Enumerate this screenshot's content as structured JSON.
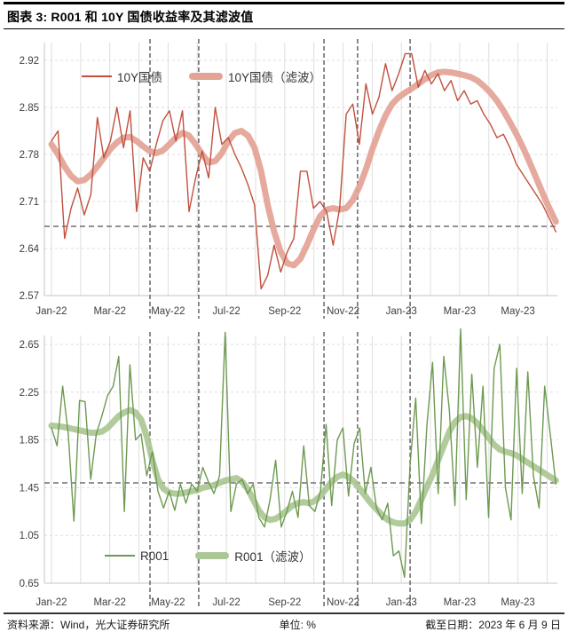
{
  "title": "图表 3: R001 和 10Y 国债收益率及其滤波值",
  "footer": {
    "source": "资料来源：Wind，光大证券研究所",
    "unit": "单位: %",
    "as_of": "截至日期：2023 年 6 月 9 日"
  },
  "colors": {
    "thin_red": "#c1503e",
    "thick_red": "#e3a395",
    "thin_green": "#6d9a50",
    "thick_green": "#abc795",
    "grid": "#dedede",
    "axis": "#c4c4c4",
    "event_line": "#6f6f6f",
    "ref_line": "#6f6f6f",
    "tick_text": "#3f3f3f"
  },
  "x_axis": {
    "labels": [
      "Jan-22",
      "Mar-22",
      "May-22",
      "Jul-22",
      "Sep-22",
      "Nov-22",
      "Jan-23",
      "Mar-23",
      "May-23"
    ],
    "months_total": 17.3,
    "tick_every_months": 2
  },
  "chart_data": [
    {
      "type": "line",
      "title": "10Y 国债收益率及其滤波值",
      "ylim": [
        2.57,
        2.92
      ],
      "y_ticks": [
        {
          "v": 2.92,
          "label": "2.92"
        },
        {
          "v": 2.85,
          "label": "2.85"
        },
        {
          "v": 2.78,
          "label": "2.78"
        },
        {
          "v": 2.71,
          "label": "2.71"
        },
        {
          "v": 2.64,
          "label": "2.64"
        },
        {
          "v": 2.57,
          "label": "2.57"
        }
      ],
      "ref_value": 2.673,
      "event_months": [
        3.38,
        5.05,
        9.35,
        10.5,
        12.3
      ],
      "series": [
        {
          "name": "10Y国债",
          "style": "thin",
          "color_key": "thin_red",
          "values": [
            2.8,
            2.815,
            2.655,
            2.7,
            2.73,
            2.69,
            2.72,
            2.835,
            2.775,
            2.8,
            2.85,
            2.79,
            2.845,
            2.695,
            2.775,
            2.755,
            2.795,
            2.83,
            2.845,
            2.8,
            2.845,
            2.695,
            2.745,
            2.785,
            2.745,
            2.85,
            2.795,
            2.805,
            2.78,
            2.76,
            2.735,
            2.705,
            2.58,
            2.6,
            2.645,
            2.605,
            2.635,
            2.655,
            2.755,
            2.755,
            2.7,
            2.71,
            2.695,
            2.645,
            2.7,
            2.84,
            2.855,
            2.795,
            2.885,
            2.84,
            2.865,
            2.915,
            2.875,
            2.9,
            2.93,
            2.93,
            2.88,
            2.905,
            2.885,
            2.9,
            2.875,
            2.89,
            2.86,
            2.875,
            2.855,
            2.86,
            2.84,
            2.825,
            2.805,
            2.81,
            2.79,
            2.765,
            2.75,
            2.735,
            2.72,
            2.705,
            2.685,
            2.665
          ]
        },
        {
          "name": "10Y国债（滤波）",
          "style": "thick",
          "color_key": "thick_red",
          "values": [
            2.795,
            2.78,
            2.762,
            2.748,
            2.74,
            2.742,
            2.75,
            2.762,
            2.775,
            2.788,
            2.798,
            2.805,
            2.806,
            2.8,
            2.792,
            2.785,
            2.782,
            2.786,
            2.795,
            2.805,
            2.812,
            2.808,
            2.795,
            2.78,
            2.768,
            2.77,
            2.782,
            2.8,
            2.812,
            2.815,
            2.808,
            2.79,
            2.755,
            2.705,
            2.665,
            2.635,
            2.618,
            2.615,
            2.625,
            2.645,
            2.668,
            2.688,
            2.698,
            2.7,
            2.698,
            2.7,
            2.712,
            2.732,
            2.758,
            2.788,
            2.815,
            2.838,
            2.855,
            2.865,
            2.872,
            2.878,
            2.885,
            2.892,
            2.898,
            2.902,
            2.903,
            2.902,
            2.9,
            2.898,
            2.895,
            2.89,
            2.882,
            2.872,
            2.86,
            2.845,
            2.828,
            2.81,
            2.79,
            2.768,
            2.745,
            2.722,
            2.7,
            2.68
          ]
        }
      ]
    },
    {
      "type": "line",
      "title": "R001 及其滤波值",
      "ylim": [
        0.65,
        2.65
      ],
      "y_ticks": [
        {
          "v": 2.65,
          "label": "2.65"
        },
        {
          "v": 2.25,
          "label": "2.25"
        },
        {
          "v": 1.85,
          "label": "1.85"
        },
        {
          "v": 1.45,
          "label": "1.45"
        },
        {
          "v": 1.05,
          "label": "1.05"
        },
        {
          "v": 0.65,
          "label": "0.65"
        }
      ],
      "ref_value": 1.49,
      "event_months": [
        3.38,
        5.05,
        9.35,
        10.5,
        12.3
      ],
      "series": [
        {
          "name": "R001",
          "style": "thin",
          "color_key": "thin_green",
          "values": [
            1.95,
            1.8,
            2.3,
            1.9,
            1.17,
            2.18,
            2.17,
            1.52,
            1.9,
            2.05,
            2.22,
            2.3,
            2.55,
            1.25,
            2.48,
            1.85,
            1.9,
            1.55,
            1.75,
            1.42,
            1.28,
            1.42,
            1.26,
            1.48,
            1.32,
            1.48,
            1.42,
            1.62,
            1.5,
            1.4,
            1.55,
            2.75,
            1.25,
            1.48,
            1.52,
            1.4,
            1.48,
            1.2,
            1.12,
            1.35,
            1.68,
            1.12,
            1.25,
            1.42,
            1.2,
            1.8,
            1.3,
            1.25,
            1.42,
            1.98,
            1.3,
            1.85,
            1.95,
            1.38,
            1.82,
            1.95,
            1.4,
            1.62,
            1.28,
            1.18,
            1.32,
            0.88,
            0.92,
            0.7,
            1.65,
            2.2,
            1.15,
            1.98,
            2.5,
            1.4,
            2.55,
            2.1,
            1.3,
            2.78,
            1.35,
            2.4,
            1.62,
            2.3,
            1.2,
            2.45,
            2.65,
            1.45,
            1.18,
            2.45,
            1.4,
            2.42,
            1.55,
            1.28,
            2.3,
            1.9,
            1.48
          ]
        },
        {
          "name": "R001（滤波）",
          "style": "thick",
          "color_key": "thick_green",
          "values": [
            1.97,
            1.965,
            1.96,
            1.95,
            1.94,
            1.93,
            1.92,
            1.91,
            1.91,
            1.92,
            1.95,
            2.0,
            2.05,
            2.08,
            2.1,
            2.08,
            2.02,
            1.88,
            1.68,
            1.52,
            1.44,
            1.41,
            1.4,
            1.4,
            1.41,
            1.42,
            1.43,
            1.45,
            1.46,
            1.47,
            1.49,
            1.51,
            1.52,
            1.53,
            1.5,
            1.44,
            1.35,
            1.26,
            1.2,
            1.18,
            1.19,
            1.22,
            1.26,
            1.3,
            1.32,
            1.33,
            1.32,
            1.34,
            1.38,
            1.44,
            1.5,
            1.54,
            1.56,
            1.54,
            1.5,
            1.44,
            1.38,
            1.32,
            1.27,
            1.22,
            1.18,
            1.16,
            1.15,
            1.15,
            1.18,
            1.25,
            1.35,
            1.46,
            1.56,
            1.68,
            1.8,
            1.92,
            2.0,
            2.04,
            2.05,
            2.03,
            1.99,
            1.93,
            1.87,
            1.81,
            1.77,
            1.75,
            1.74,
            1.72,
            1.69,
            1.66,
            1.63,
            1.6,
            1.57,
            1.54,
            1.51
          ]
        }
      ]
    }
  ]
}
